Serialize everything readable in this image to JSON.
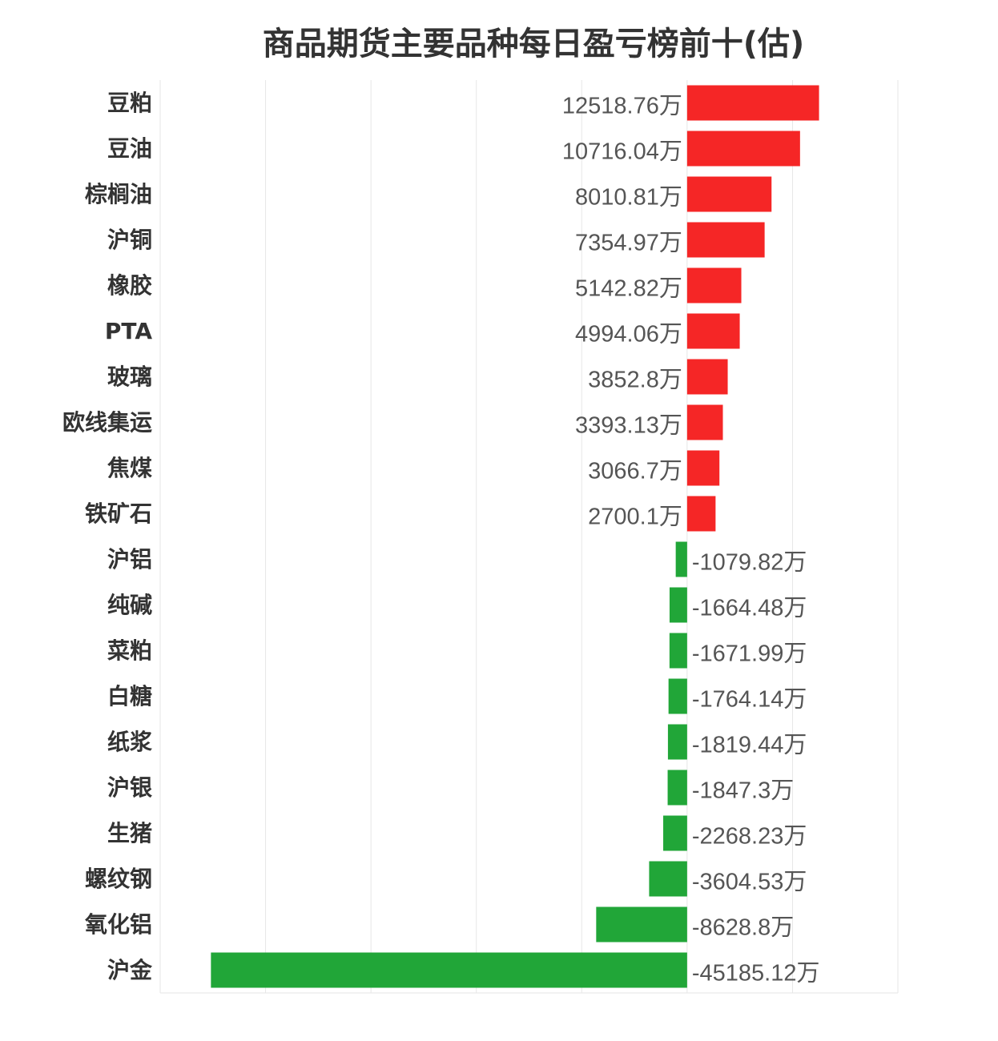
{
  "chart_data": {
    "type": "bar",
    "orientation": "horizontal",
    "title": "商品期货主要品种每日盈亏榜前十(估)",
    "unit_suffix": "万",
    "grid": true,
    "colors": {
      "positive": "#f52626",
      "negative": "#21a638"
    },
    "categories": [
      "豆粕",
      "豆油",
      "棕榈油",
      "沪铜",
      "橡胶",
      "PTA",
      "玻璃",
      "欧线集运",
      "焦煤",
      "铁矿石",
      "沪铝",
      "纯碱",
      "菜粕",
      "白糖",
      "纸浆",
      "沪银",
      "生猪",
      "螺纹钢",
      "氧化铝",
      "沪金"
    ],
    "values": [
      12518.76,
      10716.04,
      8010.81,
      7354.97,
      5142.82,
      4994.06,
      3852.8,
      3393.13,
      3066.7,
      2700.1,
      -1079.82,
      -1664.48,
      -1671.99,
      -1764.14,
      -1819.44,
      -1847.3,
      -2268.23,
      -3604.53,
      -8628.8,
      -45185.12
    ],
    "value_labels": [
      "12518.76万",
      "10716.04万",
      "8010.81万",
      "7354.97万",
      "5142.82万",
      "4994.06万",
      "3852.8万",
      "3393.13万",
      "3066.7万",
      "2700.1万",
      "-1079.82万",
      "-1664.48万",
      "-1671.99万",
      "-1764.14万",
      "-1819.44万",
      "-1847.3万",
      "-2268.23万",
      "-3604.53万",
      "-8628.8万",
      "-45185.12万"
    ],
    "xlim": [
      -50000,
      20000
    ]
  }
}
